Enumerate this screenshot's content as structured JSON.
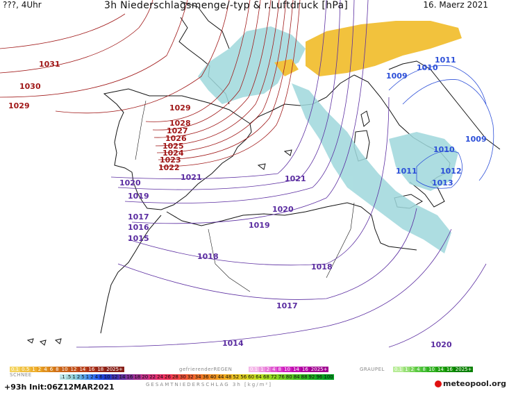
{
  "header": {
    "left": "???, 4Uhr",
    "title": "3h Niederschlagsmenge/-typ & r.Luftdruck [hPa]",
    "date": "16. Maerz 2021"
  },
  "isobars_red": [
    "1031",
    "1030",
    "1029",
    "1029",
    "1028",
    "1027",
    "1026",
    "1025",
    "1024",
    "1023",
    "1022"
  ],
  "isobars_purple": [
    "1021",
    "1021",
    "1020",
    "1020",
    "1019",
    "1019",
    "1018",
    "1018",
    "1017",
    "1017",
    "1016",
    "1015",
    "1014",
    "1020"
  ],
  "isobars_blue": [
    "1011",
    "1010",
    "1009",
    "1009",
    "1010",
    "1011",
    "1012",
    "1013"
  ],
  "legend": {
    "snow_label": "SCHNEE",
    "snow_values": [
      "0.1",
      "0.5",
      "1",
      "2",
      "4",
      "6",
      "8",
      "10",
      "12",
      "14",
      "16",
      "18",
      "2025+"
    ],
    "freezing_rain_label": "gefrierenderREGEN",
    "freezing_rain_values": [
      "0.1",
      "1",
      "2",
      "4",
      "8",
      "10",
      "14",
      "16",
      "2025+"
    ],
    "graupel_label": "GRAUPEL",
    "graupel_values": [
      "0.1",
      "1",
      "2",
      "4",
      "8",
      "10",
      "14",
      "16",
      "2025+"
    ],
    "total_values": [
      ".1",
      ".5",
      "1",
      "2",
      "5",
      "1",
      "2",
      "4",
      "6",
      "10",
      "12",
      "14",
      "16",
      "18",
      "20",
      "22",
      "24",
      "26",
      "28",
      "30",
      "32",
      "34",
      "36",
      "40",
      "44",
      "48",
      "52",
      "56",
      "60",
      "64",
      "68",
      "72",
      "76",
      "80",
      "84",
      "88",
      "92",
      "96",
      "100"
    ],
    "total_label": "GESAMTNIEDERSCHLAG 3h [kg/m²]"
  },
  "footer": {
    "run": "+93h Init:06Z12MAR2021",
    "logo": "meteopool.org"
  },
  "colors": {
    "isobar_red": "#a01818",
    "isobar_purple": "#5a2ca0",
    "isobar_blue": "#2c4fd8",
    "rain_light": "#9fd8dc",
    "snow": "#f0b81c"
  }
}
